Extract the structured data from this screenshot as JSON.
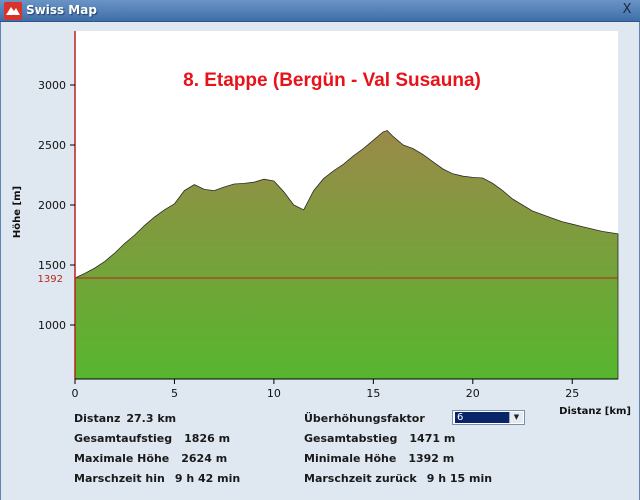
{
  "window": {
    "title": "Swiss Map",
    "close_label": "X"
  },
  "colors": {
    "title_text": "#e8121a",
    "baseline": "#b5261e",
    "fill_top": "#9a8a48",
    "fill_bottom": "#56b62e",
    "panel_bg": "#dfe8f1"
  },
  "chart_data": {
    "type": "area",
    "title": "8. Etappe (Bergün - Val Susauna)",
    "xlabel": "Distanz [km]",
    "ylabel": "Höhe [m]",
    "xlim": [
      0,
      27.3
    ],
    "ylim": [
      550,
      3450
    ],
    "xticks": [
      0,
      5,
      10,
      15,
      20,
      25
    ],
    "yticks": [
      1000,
      1500,
      2000,
      2500,
      3000
    ],
    "baseline_label": "1392",
    "baseline_value": 1392,
    "grid": false,
    "legend": "none",
    "x": [
      0,
      0.5,
      1,
      1.5,
      2,
      2.5,
      3,
      3.5,
      4,
      4.5,
      5,
      5.5,
      6,
      6.5,
      7,
      7.5,
      8,
      8.5,
      9,
      9.5,
      10,
      10.5,
      11,
      11.5,
      12,
      12.5,
      13,
      13.5,
      14,
      14.5,
      15,
      15.5,
      15.7,
      16,
      16.5,
      17,
      17.5,
      18,
      18.5,
      19,
      19.5,
      20,
      20.5,
      21,
      21.5,
      22,
      22.5,
      23,
      23.5,
      24,
      24.5,
      25,
      25.5,
      26,
      26.5,
      27.3
    ],
    "y": [
      1392,
      1430,
      1475,
      1530,
      1600,
      1680,
      1750,
      1830,
      1900,
      1960,
      2010,
      2120,
      2170,
      2130,
      2120,
      2150,
      2175,
      2180,
      2190,
      2215,
      2200,
      2110,
      2000,
      1960,
      2120,
      2220,
      2285,
      2340,
      2410,
      2470,
      2540,
      2610,
      2620,
      2570,
      2500,
      2470,
      2420,
      2360,
      2300,
      2260,
      2240,
      2230,
      2225,
      2180,
      2120,
      2050,
      2000,
      1950,
      1920,
      1890,
      1860,
      1840,
      1820,
      1800,
      1780,
      1760
    ]
  },
  "stats": {
    "distance_label": "Distanz",
    "distance_value": "27.3 km",
    "ascent_label": "Gesamtaufstieg",
    "ascent_value": "1826 m",
    "max_label": "Maximale Höhe",
    "max_value": "2624 m",
    "time_out_label": "Marschzeit hin",
    "time_out_value": "9 h 42 min",
    "exaggeration_label": "Überhöhungsfaktor",
    "exaggeration_value": "6",
    "descent_label": "Gesamtabstieg",
    "descent_value": "1471 m",
    "min_label": "Minimale Höhe",
    "min_value": "1392 m",
    "time_back_label": "Marschzeit zurück",
    "time_back_value": "9 h 15 min"
  }
}
